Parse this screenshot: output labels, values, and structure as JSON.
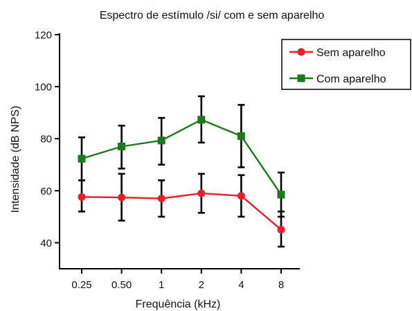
{
  "chart_data": {
    "type": "line",
    "title": "Espectro de estímulo /si/ com e sem aparelho",
    "xlabel": "Frequência (kHz)",
    "ylabel": "Intensidade (dB NPS)",
    "categories": [
      "0.25",
      "0.50",
      "1",
      "2",
      "4",
      "8"
    ],
    "ylim": [
      30,
      120
    ],
    "yticks": [
      "40",
      "60",
      "80",
      "100",
      "120"
    ],
    "grid": false,
    "legend_position": "top-right",
    "series": [
      {
        "name": "Sem aparelho",
        "color": "#ee1c24",
        "marker": "circle",
        "values": [
          57.6,
          57.4,
          57.0,
          59.0,
          58.0,
          45.0
        ],
        "err_low": [
          52.0,
          48.5,
          50.0,
          51.5,
          50.0,
          38.5
        ],
        "err_high": [
          64.0,
          66.5,
          64.0,
          66.5,
          66.0,
          52.0
        ]
      },
      {
        "name": "Com aparelho",
        "color": "#1b7a1b",
        "marker": "square",
        "values": [
          72.3,
          77.0,
          79.3,
          87.3,
          81.0,
          58.5
        ],
        "err_low": [
          64.0,
          68.5,
          70.0,
          78.5,
          69.0,
          50.0
        ],
        "err_high": [
          80.5,
          85.0,
          88.0,
          96.3,
          93.0,
          67.0
        ]
      }
    ]
  }
}
